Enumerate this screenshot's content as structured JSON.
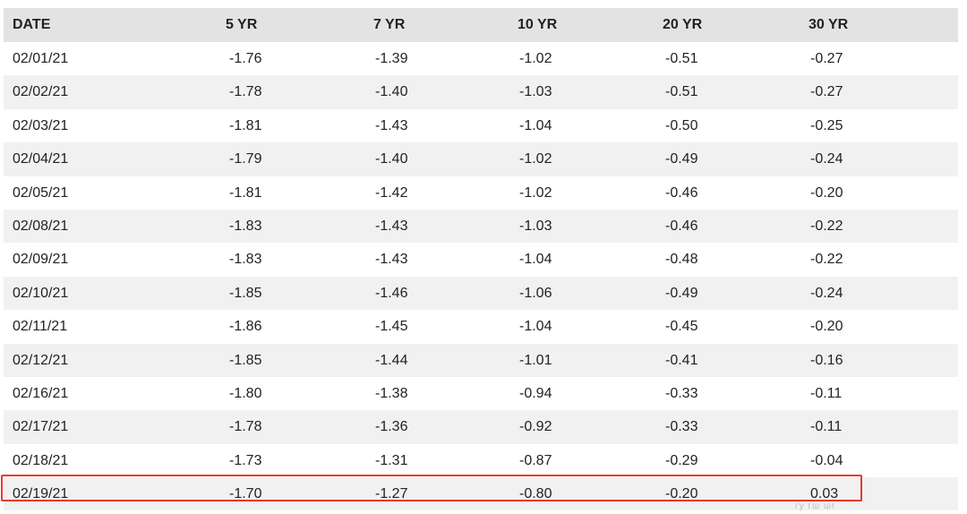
{
  "table": {
    "headers": [
      "DATE",
      "5 YR",
      "7 YR",
      "10 YR",
      "20 YR",
      "30 YR"
    ],
    "rows": [
      [
        "02/01/21",
        "-1.76",
        "-1.39",
        "-1.02",
        "-0.51",
        "-0.27"
      ],
      [
        "02/02/21",
        "-1.78",
        "-1.40",
        "-1.03",
        "-0.51",
        "-0.27"
      ],
      [
        "02/03/21",
        "-1.81",
        "-1.43",
        "-1.04",
        "-0.50",
        "-0.25"
      ],
      [
        "02/04/21",
        "-1.79",
        "-1.40",
        "-1.02",
        "-0.49",
        "-0.24"
      ],
      [
        "02/05/21",
        "-1.81",
        "-1.42",
        "-1.02",
        "-0.46",
        "-0.20"
      ],
      [
        "02/08/21",
        "-1.83",
        "-1.43",
        "-1.03",
        "-0.46",
        "-0.22"
      ],
      [
        "02/09/21",
        "-1.83",
        "-1.43",
        "-1.04",
        "-0.48",
        "-0.22"
      ],
      [
        "02/10/21",
        "-1.85",
        "-1.46",
        "-1.06",
        "-0.49",
        "-0.24"
      ],
      [
        "02/11/21",
        "-1.86",
        "-1.45",
        "-1.04",
        "-0.45",
        "-0.20"
      ],
      [
        "02/12/21",
        "-1.85",
        "-1.44",
        "-1.01",
        "-0.41",
        "-0.16"
      ],
      [
        "02/16/21",
        "-1.80",
        "-1.38",
        "-0.94",
        "-0.33",
        "-0.11"
      ],
      [
        "02/17/21",
        "-1.78",
        "-1.36",
        "-0.92",
        "-0.33",
        "-0.11"
      ],
      [
        "02/18/21",
        "-1.73",
        "-1.31",
        "-0.87",
        "-0.29",
        "-0.04"
      ],
      [
        "02/19/21",
        "-1.70",
        "-1.27",
        "-0.80",
        "-0.20",
        "0.03"
      ]
    ],
    "highlighted_row_index": 13
  },
  "colors": {
    "header_bg": "#e3e3e3",
    "stripe_bg": "#f1f1f1",
    "highlight_border": "#e8392b",
    "text": "#222222"
  },
  "watermark": {
    "text": "гу гш шг"
  }
}
